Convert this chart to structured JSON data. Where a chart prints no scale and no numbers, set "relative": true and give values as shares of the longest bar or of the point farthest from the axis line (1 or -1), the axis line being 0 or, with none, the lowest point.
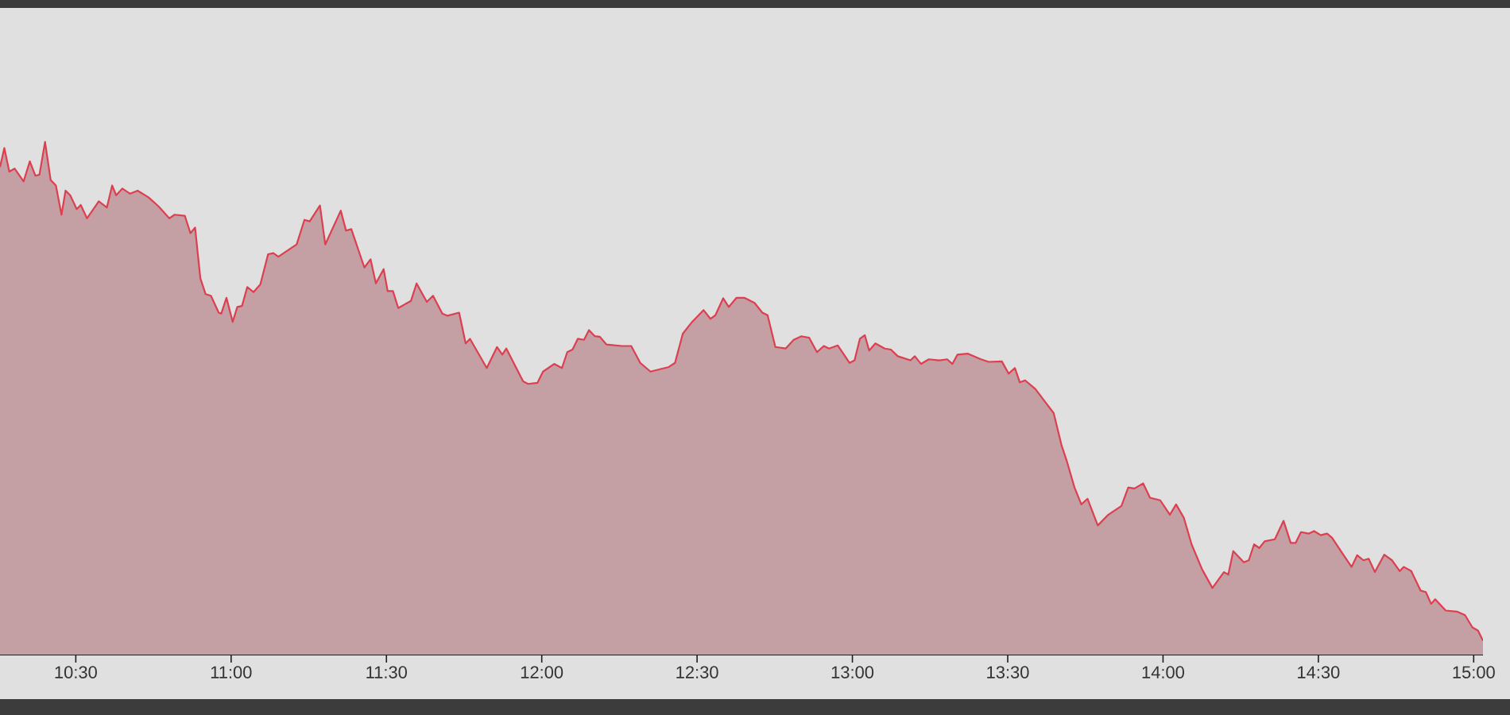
{
  "chart_data": {
    "type": "area",
    "relative": true,
    "color": "#dc3f50",
    "x": [
      10.256,
      10.27,
      10.286,
      10.303,
      10.332,
      10.352,
      10.37,
      10.383,
      10.401,
      10.419,
      10.436,
      10.454,
      10.467,
      10.482,
      10.503,
      10.516,
      10.536,
      10.574,
      10.6,
      10.617,
      10.63,
      10.65,
      10.675,
      10.699,
      10.734,
      10.767,
      10.801,
      10.818,
      10.851,
      10.869,
      10.884,
      10.901,
      10.918,
      10.935,
      10.96,
      10.968,
      10.985,
      11.005,
      11.02,
      11.035,
      11.052,
      11.072,
      11.094,
      11.119,
      11.136,
      11.152,
      11.211,
      11.236,
      11.253,
      11.286,
      11.303,
      11.353,
      11.37,
      11.387,
      11.429,
      11.449,
      11.466,
      11.491,
      11.504,
      11.521,
      11.538,
      11.579,
      11.597,
      11.63,
      11.65,
      11.68,
      11.697,
      11.734,
      11.755,
      11.769,
      11.823,
      11.856,
      11.873,
      11.886,
      11.94,
      11.956,
      11.986,
      12.004,
      12.04,
      12.065,
      12.082,
      12.099,
      12.116,
      12.136,
      12.152,
      12.171,
      12.187,
      12.208,
      12.258,
      12.288,
      12.317,
      12.35,
      12.383,
      12.409,
      12.429,
      12.454,
      12.484,
      12.521,
      12.543,
      12.559,
      12.584,
      12.602,
      12.627,
      12.652,
      12.685,
      12.71,
      12.727,
      12.752,
      12.785,
      12.811,
      12.836,
      12.861,
      12.886,
      12.908,
      12.925,
      12.953,
      12.991,
      13.007,
      13.024,
      13.04,
      13.054,
      13.074,
      13.104,
      13.124,
      13.146,
      13.187,
      13.201,
      13.221,
      13.246,
      13.28,
      13.305,
      13.322,
      13.338,
      13.372,
      13.414,
      13.439,
      13.481,
      13.503,
      13.523,
      13.539,
      13.556,
      13.589,
      13.648,
      13.673,
      13.69,
      13.715,
      13.737,
      13.757,
      13.79,
      13.824,
      13.866,
      13.888,
      13.908,
      13.936,
      13.958,
      13.991,
      14.022,
      14.042,
      14.067,
      14.092,
      14.126,
      14.159,
      14.196,
      14.21,
      14.226,
      14.26,
      14.276,
      14.293,
      14.31,
      14.327,
      14.36,
      14.388,
      14.411,
      14.427,
      14.444,
      14.469,
      14.486,
      14.508,
      14.528,
      14.544,
      14.578,
      14.607,
      14.625,
      14.645,
      14.662,
      14.682,
      14.712,
      14.737,
      14.762,
      14.775,
      14.799,
      14.829,
      14.846,
      14.863,
      14.876,
      14.91,
      14.946,
      14.972,
      14.996,
      15.014,
      15.03
    ],
    "values": [
      0.951,
      0.988,
      0.942,
      0.948,
      0.923,
      0.962,
      0.934,
      0.936,
      1.0,
      0.926,
      0.915,
      0.858,
      0.905,
      0.896,
      0.869,
      0.877,
      0.851,
      0.884,
      0.872,
      0.915,
      0.896,
      0.909,
      0.899,
      0.905,
      0.892,
      0.874,
      0.851,
      0.858,
      0.856,
      0.822,
      0.833,
      0.734,
      0.703,
      0.7,
      0.667,
      0.665,
      0.696,
      0.649,
      0.678,
      0.68,
      0.717,
      0.707,
      0.722,
      0.781,
      0.783,
      0.776,
      0.8,
      0.848,
      0.845,
      0.876,
      0.8,
      0.866,
      0.827,
      0.83,
      0.755,
      0.771,
      0.724,
      0.752,
      0.709,
      0.709,
      0.676,
      0.69,
      0.724,
      0.688,
      0.7,
      0.665,
      0.661,
      0.667,
      0.607,
      0.616,
      0.559,
      0.6,
      0.585,
      0.597,
      0.533,
      0.528,
      0.53,
      0.552,
      0.567,
      0.559,
      0.59,
      0.595,
      0.616,
      0.614,
      0.633,
      0.621,
      0.62,
      0.605,
      0.602,
      0.602,
      0.569,
      0.552,
      0.557,
      0.561,
      0.569,
      0.626,
      0.649,
      0.672,
      0.655,
      0.662,
      0.695,
      0.678,
      0.696,
      0.696,
      0.686,
      0.667,
      0.662,
      0.6,
      0.597,
      0.614,
      0.621,
      0.618,
      0.59,
      0.602,
      0.597,
      0.603,
      0.569,
      0.574,
      0.616,
      0.623,
      0.593,
      0.607,
      0.597,
      0.595,
      0.582,
      0.574,
      0.582,
      0.567,
      0.576,
      0.574,
      0.576,
      0.567,
      0.585,
      0.587,
      0.576,
      0.571,
      0.572,
      0.548,
      0.559,
      0.531,
      0.535,
      0.518,
      0.471,
      0.409,
      0.378,
      0.326,
      0.293,
      0.304,
      0.252,
      0.273,
      0.29,
      0.326,
      0.324,
      0.334,
      0.306,
      0.301,
      0.273,
      0.293,
      0.267,
      0.215,
      0.166,
      0.13,
      0.161,
      0.156,
      0.202,
      0.18,
      0.184,
      0.215,
      0.208,
      0.221,
      0.225,
      0.261,
      0.218,
      0.218,
      0.239,
      0.236,
      0.241,
      0.233,
      0.236,
      0.228,
      0.197,
      0.171,
      0.194,
      0.184,
      0.187,
      0.161,
      0.195,
      0.184,
      0.163,
      0.171,
      0.163,
      0.125,
      0.122,
      0.099,
      0.108,
      0.086,
      0.084,
      0.077,
      0.053,
      0.047,
      0.027
    ],
    "xlim": [
      10.256,
      15.03
    ],
    "xticks": [
      {
        "value": 10.5,
        "label": "10:30"
      },
      {
        "value": 11,
        "label": "11:00"
      },
      {
        "value": 11.5,
        "label": "11:30"
      },
      {
        "value": 12,
        "label": "12:00"
      },
      {
        "value": 12.5,
        "label": "12:30"
      },
      {
        "value": 13,
        "label": "13:00"
      },
      {
        "value": 13.5,
        "label": "13:30"
      },
      {
        "value": 14,
        "label": "14:00"
      },
      {
        "value": 14.5,
        "label": "14:30"
      },
      {
        "value": 15,
        "label": "15:00"
      }
    ]
  }
}
